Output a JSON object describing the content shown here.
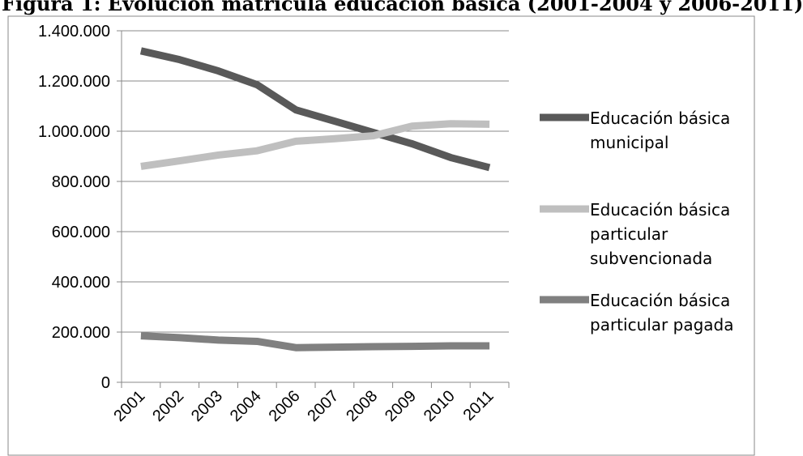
{
  "chart_data": {
    "type": "line",
    "title": "Figura 1: Evolución matrícula educación básica (2001-2004 y 2006-2011)",
    "xlabel": "",
    "ylabel": "",
    "categories": [
      "2001",
      "2002",
      "2003",
      "2004",
      "2006",
      "2007",
      "2008",
      "2009",
      "2010",
      "2011"
    ],
    "ylim": [
      0,
      1400000
    ],
    "yticks": [
      0,
      200000,
      400000,
      600000,
      800000,
      1000000,
      1200000,
      1400000
    ],
    "ytick_labels": [
      "0",
      "200.000",
      "400.000",
      "600.000",
      "800.000",
      "1.000.000",
      "1.200.000",
      "1.400.000"
    ],
    "grid": true,
    "legend_position": "right",
    "series": [
      {
        "name": [
          "Educación básica",
          "municipal"
        ],
        "color": "#595959",
        "values": [
          1320000,
          1285000,
          1240000,
          1185000,
          1085000,
          1040000,
          995000,
          950000,
          895000,
          855000
        ]
      },
      {
        "name": [
          "Educación básica",
          "particular",
          "subvencionada"
        ],
        "color": "#bfbfbf",
        "values": [
          860000,
          882000,
          905000,
          922000,
          960000,
          970000,
          982000,
          1020000,
          1030000,
          1028000
        ]
      },
      {
        "name": [
          "Educación básica",
          "particular pagada"
        ],
        "color": "#808080",
        "values": [
          185000,
          178000,
          168000,
          163000,
          138000,
          140000,
          142000,
          143000,
          145000,
          145000
        ]
      }
    ]
  }
}
